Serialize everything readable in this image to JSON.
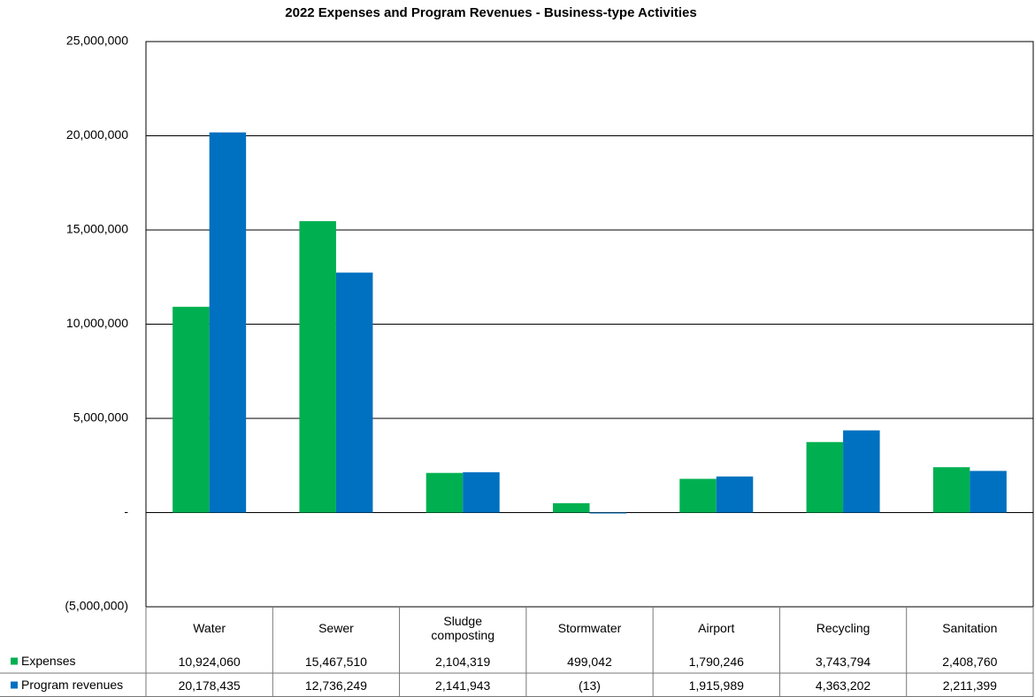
{
  "chart_data": {
    "type": "bar",
    "title": "2022 Expenses and Program Revenues - Business-type Activities",
    "categories": [
      "Water",
      "Sewer",
      "Sludge composting",
      "Stormwater",
      "Airport",
      "Recycling",
      "Sanitation"
    ],
    "series": [
      {
        "name": "Expenses",
        "color": "#00b050",
        "values": [
          10924060,
          15467510,
          2104319,
          499042,
          1790246,
          3743794,
          2408760
        ],
        "value_labels": [
          "10,924,060",
          "15,467,510",
          "2,104,319",
          "499,042",
          "1,790,246",
          "3,743,794",
          "2,408,760"
        ]
      },
      {
        "name": "Program revenues",
        "color": "#0070c0",
        "values": [
          20178435,
          12736249,
          2141943,
          -13,
          1915989,
          4363202,
          2211399
        ],
        "value_labels": [
          "20,178,435",
          "12,736,249",
          "2,141,943",
          "(13)",
          "1,915,989",
          "4,363,202",
          "2,211,399"
        ]
      }
    ],
    "ylim": [
      -5000000,
      25000000
    ],
    "yticks": [
      {
        "value": -5000000,
        "label": "(5,000,000)"
      },
      {
        "value": 0,
        "label": "-"
      },
      {
        "value": 5000000,
        "label": "5,000,000"
      },
      {
        "value": 10000000,
        "label": "10,000,000"
      },
      {
        "value": 15000000,
        "label": "15,000,000"
      },
      {
        "value": 20000000,
        "label": "20,000,000"
      },
      {
        "value": 25000000,
        "label": "25,000,000"
      }
    ],
    "grid": true
  }
}
